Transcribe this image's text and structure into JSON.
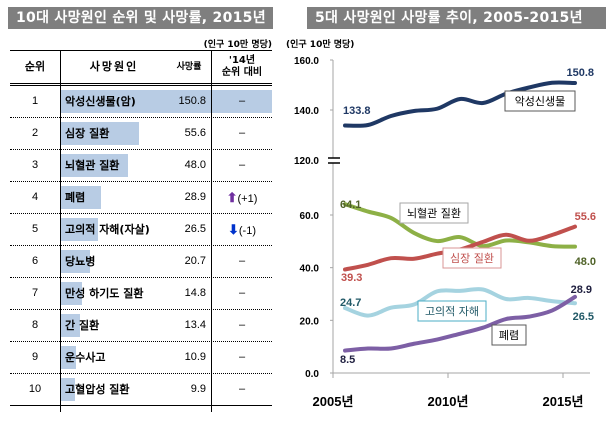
{
  "left_panel": {
    "title": "10대 사망원인 순위 및 사망률, 2015년",
    "unit": "(인구 10만 명당)",
    "headers": {
      "rank": "순위",
      "cause": "사망원인",
      "rate": "사망률",
      "change_line1": "'14년",
      "change_line2": "순위 대비"
    },
    "bar_color": "#b8cce4",
    "max_rate": 150.8,
    "rows": [
      {
        "rank": "1",
        "cause": "악성신생물(암)",
        "rate": "150.8",
        "value": 150.8,
        "change": "–",
        "arrow": ""
      },
      {
        "rank": "2",
        "cause": "심장 질환",
        "rate": "55.6",
        "value": 55.6,
        "change": "–",
        "arrow": ""
      },
      {
        "rank": "3",
        "cause": "뇌혈관 질환",
        "rate": "48.0",
        "value": 48.0,
        "change": "–",
        "arrow": ""
      },
      {
        "rank": "4",
        "cause": "폐렴",
        "rate": "28.9",
        "value": 28.9,
        "change": "(+1)",
        "arrow": "up"
      },
      {
        "rank": "5",
        "cause": "고의적 자해(자살)",
        "rate": "26.5",
        "value": 26.5,
        "change": "(-1)",
        "arrow": "down"
      },
      {
        "rank": "6",
        "cause": "당뇨병",
        "rate": "20.7",
        "value": 20.7,
        "change": "–",
        "arrow": ""
      },
      {
        "rank": "7",
        "cause": "만성 하기도 질환",
        "rate": "14.8",
        "value": 14.8,
        "change": "–",
        "arrow": ""
      },
      {
        "rank": "8",
        "cause": "간 질환",
        "rate": "13.4",
        "value": 13.4,
        "change": "–",
        "arrow": ""
      },
      {
        "rank": "9",
        "cause": "운수사고",
        "rate": "10.9",
        "value": 10.9,
        "change": "–",
        "arrow": ""
      },
      {
        "rank": "10",
        "cause": "고혈압성 질환",
        "rate": "9.9",
        "value": 9.9,
        "change": "–",
        "arrow": ""
      }
    ],
    "arrow_colors": {
      "up": "#7030a0",
      "down": "#0033cc"
    }
  },
  "right_panel": {
    "title": "5대 사망원인 사망률 추이, 2005-2015년",
    "unit": "(인구 10만 명당)"
  },
  "chart_data": {
    "type": "line",
    "title": "5대 사망원인 사망률 추이, 2005-2015년",
    "ylabel": "(인구 10만 명당)",
    "xlabel": "",
    "x": [
      2005,
      2006,
      2007,
      2008,
      2009,
      2010,
      2011,
      2012,
      2013,
      2014,
      2015
    ],
    "x_tick_labels": [
      "2005년",
      "2010년",
      "2015년"
    ],
    "x_tick_values": [
      2005,
      2010,
      2015
    ],
    "y_axis_broken": true,
    "ylim_lower": [
      0,
      60
    ],
    "ylim_upper": [
      120,
      160
    ],
    "y_tick_labels": [
      "0.0",
      "20.0",
      "40.0",
      "60.0",
      "120.0",
      "140.0",
      "160.0"
    ],
    "y_tick_values": [
      0,
      20,
      40,
      60,
      120,
      140,
      160
    ],
    "grid": false,
    "series": [
      {
        "name": "악성신생물",
        "color": "#1f3864",
        "values": [
          133.8,
          134.0,
          137.6,
          139.6,
          140.5,
          144.4,
          142.8,
          146.5,
          149.0,
          150.9,
          150.8
        ],
        "start_label": "133.8",
        "end_label": "150.8",
        "label_color": "#1f3864"
      },
      {
        "name": "뇌혈관 질환",
        "color": "#8db046",
        "values": [
          64.1,
          61.3,
          58.9,
          53.2,
          50.1,
          51.6,
          48.2,
          50.3,
          49.6,
          48.2,
          48.0
        ],
        "start_label": "64.1",
        "end_label": "48.0",
        "label_color": "#4f6228"
      },
      {
        "name": "심장 질환",
        "color": "#c0504d",
        "values": [
          39.3,
          41.1,
          43.6,
          43.4,
          45.3,
          46.9,
          49.8,
          52.5,
          50.2,
          52.4,
          55.6
        ],
        "start_label": "39.3",
        "end_label": "55.6",
        "label_color": "#c0504d"
      },
      {
        "name": "고의적 자해",
        "color": "#a5d3e0",
        "values": [
          24.7,
          21.8,
          24.8,
          26.0,
          31.0,
          31.2,
          31.7,
          28.1,
          28.5,
          27.3,
          26.5
        ],
        "start_label": "24.7",
        "end_label": "26.5",
        "label_color": "#215967"
      },
      {
        "name": "폐렴",
        "color": "#7d5fa5",
        "values": [
          8.5,
          9.3,
          9.3,
          11.1,
          12.7,
          14.9,
          17.2,
          20.5,
          21.4,
          23.7,
          28.9
        ],
        "start_label": "8.5",
        "end_label": "28.9",
        "label_color": "#1f1f3f"
      }
    ]
  }
}
